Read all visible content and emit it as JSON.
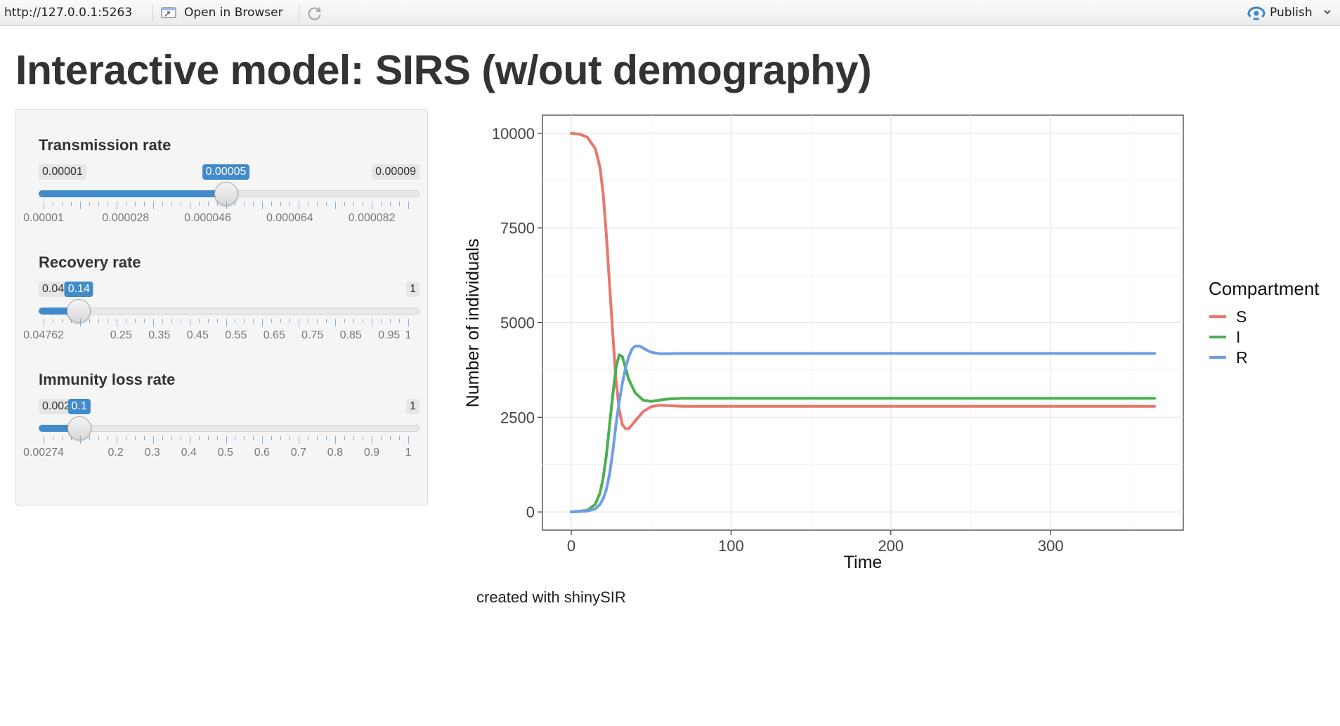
{
  "toolbar": {
    "url": "http://127.0.0.1:5263",
    "open_in_browser_label": "Open in Browser",
    "publish_label": "Publish",
    "icons": [
      "open-in-browser-icon",
      "refresh-icon",
      "publish-icon",
      "chevron-down-icon"
    ]
  },
  "page": {
    "title": "Interactive model: SIRS (w/out demography)",
    "footer": "created with shinySIR"
  },
  "sliders": [
    {
      "label": "Transmission rate",
      "min_label": "0.00001",
      "max_label": "0.00009",
      "value_label": "0.00005",
      "min": 1e-05,
      "max": 9e-05,
      "value": 5e-05,
      "tick_labels": [
        {
          "text": "0.00001",
          "value": 1e-05
        },
        {
          "text": "0.000028",
          "value": 2.8e-05
        },
        {
          "text": "0.000046",
          "value": 4.6e-05
        },
        {
          "text": "0.000064",
          "value": 6.4e-05
        },
        {
          "text": "0.000082",
          "value": 8.2e-05
        }
      ]
    },
    {
      "label": "Recovery rate",
      "min_label": "0.04762",
      "max_label": "1",
      "value_label": "0.14",
      "min": 0.04762,
      "max": 1,
      "value": 0.14,
      "tick_labels": [
        {
          "text": "0.04762",
          "value": 0.04762
        },
        {
          "text": "0.25",
          "value": 0.25
        },
        {
          "text": "0.35",
          "value": 0.35
        },
        {
          "text": "0.45",
          "value": 0.45
        },
        {
          "text": "0.55",
          "value": 0.55
        },
        {
          "text": "0.65",
          "value": 0.65
        },
        {
          "text": "0.75",
          "value": 0.75
        },
        {
          "text": "0.85",
          "value": 0.85
        },
        {
          "text": "0.95",
          "value": 0.95
        },
        {
          "text": "1",
          "value": 1
        }
      ]
    },
    {
      "label": "Immunity loss rate",
      "min_label": "0.00274",
      "max_label": "1",
      "value_label": "0.1",
      "min": 0.00274,
      "max": 1,
      "value": 0.1,
      "tick_labels": [
        {
          "text": "0.00274",
          "value": 0.00274
        },
        {
          "text": "0.2",
          "value": 0.2
        },
        {
          "text": "0.3",
          "value": 0.3
        },
        {
          "text": "0.4",
          "value": 0.4
        },
        {
          "text": "0.5",
          "value": 0.5
        },
        {
          "text": "0.6",
          "value": 0.6
        },
        {
          "text": "0.7",
          "value": 0.7
        },
        {
          "text": "0.8",
          "value": 0.8
        },
        {
          "text": "0.9",
          "value": 0.9
        },
        {
          "text": "1",
          "value": 1
        }
      ]
    }
  ],
  "chart_data": {
    "type": "line",
    "title": "",
    "xlabel": "Time",
    "ylabel": "Number of individuals",
    "xlim": [
      -18,
      383
    ],
    "ylim": [
      -480,
      10480
    ],
    "xticks": [
      0,
      100,
      200,
      300
    ],
    "yticks": [
      0,
      2500,
      5000,
      7500,
      10000
    ],
    "grid": true,
    "legend": {
      "title": "Compartment",
      "position": "right"
    },
    "series": [
      {
        "name": "S",
        "color": "#e8776f",
        "x": [
          0,
          5,
          10,
          15,
          18,
          20,
          22,
          24,
          26,
          28,
          30,
          32,
          34,
          36,
          40,
          45,
          50,
          55,
          60,
          70,
          80,
          365
        ],
        "y": [
          10000,
          9980,
          9900,
          9600,
          9100,
          8400,
          7300,
          6000,
          4700,
          3500,
          2700,
          2300,
          2200,
          2200,
          2400,
          2650,
          2780,
          2820,
          2810,
          2790,
          2790,
          2790
        ]
      },
      {
        "name": "I",
        "color": "#4caf50",
        "x": [
          0,
          10,
          15,
          18,
          20,
          22,
          24,
          26,
          28,
          30,
          32,
          34,
          36,
          40,
          45,
          50,
          55,
          60,
          70,
          80,
          365
        ],
        "y": [
          0,
          40,
          200,
          500,
          900,
          1500,
          2300,
          3100,
          3800,
          4150,
          4100,
          3800,
          3500,
          3150,
          2950,
          2920,
          2950,
          2980,
          3000,
          3000,
          3000
        ]
      },
      {
        "name": "R",
        "color": "#6f9ee8",
        "x": [
          0,
          10,
          15,
          18,
          20,
          22,
          24,
          26,
          28,
          30,
          32,
          34,
          36,
          38,
          40,
          43,
          46,
          50,
          55,
          60,
          70,
          80,
          365
        ],
        "y": [
          0,
          20,
          80,
          200,
          350,
          600,
          1000,
          1600,
          2300,
          2900,
          3400,
          3800,
          4100,
          4300,
          4380,
          4380,
          4300,
          4220,
          4180,
          4180,
          4185,
          4185,
          4185
        ]
      }
    ]
  }
}
